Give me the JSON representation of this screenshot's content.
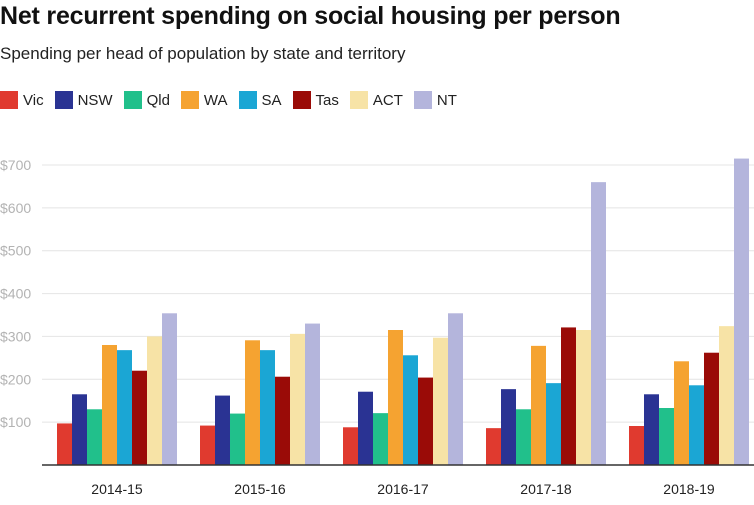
{
  "title": "Net recurrent spending on social housing per person",
  "subtitle": "Spending per head of population by state and territory",
  "chart_data": {
    "type": "bar",
    "categories": [
      "2014-15",
      "2015-16",
      "2016-17",
      "2017-18",
      "2018-19"
    ],
    "series": [
      {
        "name": "Vic",
        "color": "#e03a2f",
        "values": [
          97,
          92,
          88,
          86,
          91
        ]
      },
      {
        "name": "NSW",
        "color": "#2a3393",
        "values": [
          165,
          162,
          171,
          177,
          165
        ]
      },
      {
        "name": "Qld",
        "color": "#21c08b",
        "values": [
          130,
          120,
          121,
          130,
          133
        ]
      },
      {
        "name": "WA",
        "color": "#f5a331",
        "values": [
          280,
          291,
          315,
          278,
          242
        ]
      },
      {
        "name": "SA",
        "color": "#1ba6d4",
        "values": [
          268,
          268,
          256,
          191,
          186
        ]
      },
      {
        "name": "Tas",
        "color": "#9a0b07",
        "values": [
          220,
          206,
          204,
          321,
          262
        ]
      },
      {
        "name": "ACT",
        "color": "#f7e3a6",
        "values": [
          300,
          306,
          297,
          315,
          324
        ]
      },
      {
        "name": "NT",
        "color": "#b4b5dc",
        "values": [
          354,
          330,
          354,
          660,
          715
        ]
      }
    ],
    "ylim": [
      0,
      700
    ],
    "yticks": [
      100,
      200,
      300,
      400,
      500,
      600,
      700
    ],
    "ytick_labels": [
      "$100",
      "$200",
      "$300",
      "$400",
      "$500",
      "$600",
      "$700"
    ],
    "xlabel": "",
    "ylabel": "",
    "legend": "top-left",
    "grid": true
  }
}
